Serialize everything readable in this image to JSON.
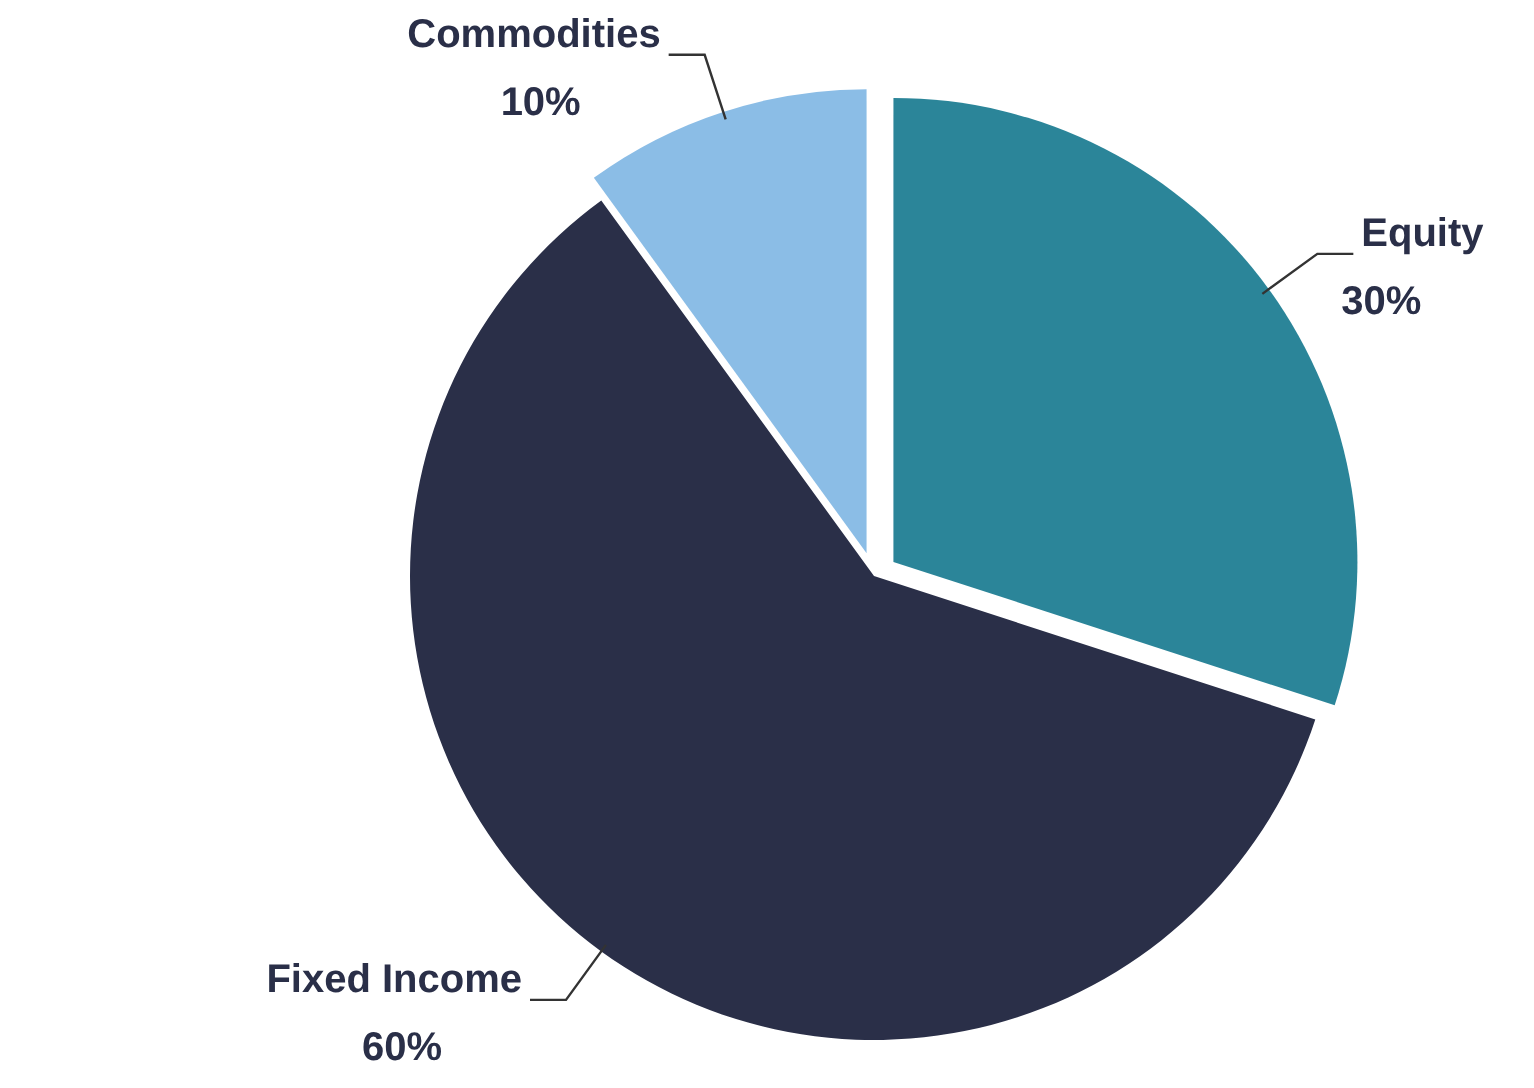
{
  "chart_data": {
    "type": "pie",
    "categories": [
      "Equity",
      "Fixed Income",
      "Commodities"
    ],
    "values": [
      30,
      60,
      10
    ],
    "colors": [
      "#2b8599",
      "#2a2f48",
      "#8bbde6"
    ],
    "value_labels": [
      "30%",
      "60%",
      "10%"
    ]
  }
}
